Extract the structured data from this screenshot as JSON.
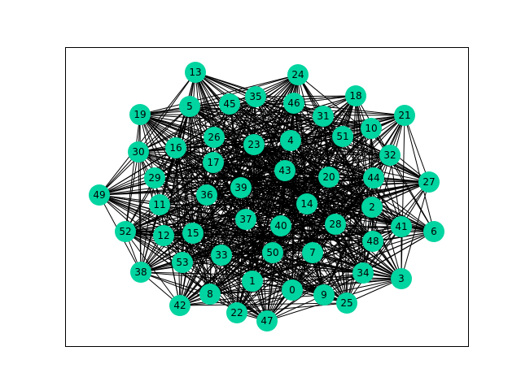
{
  "graph": {
    "node_color": "#00d4a0",
    "edge_color": "#000000",
    "label_color": "#000000",
    "nodes": [
      "0",
      "1",
      "2",
      "3",
      "4",
      "5",
      "6",
      "7",
      "8",
      "9",
      "10",
      "11",
      "12",
      "13",
      "14",
      "15",
      "16",
      "17",
      "18",
      "19",
      "20",
      "21",
      "22",
      "23",
      "24",
      "25",
      "26",
      "27",
      "28",
      "29",
      "30",
      "31",
      "32",
      "33",
      "34",
      "35",
      "36",
      "37",
      "38",
      "39",
      "40",
      "41",
      "42",
      "43",
      "44",
      "45",
      "46",
      "47",
      "48",
      "49",
      "50",
      "51",
      "52",
      "53"
    ],
    "edge_density": "dense"
  }
}
